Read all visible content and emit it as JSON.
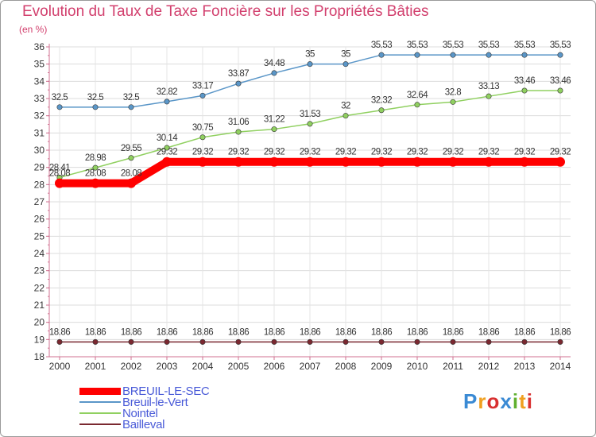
{
  "chart_data": {
    "type": "line",
    "title": "Evolution du Taux de Taxe Foncière sur les Propriétés Bâties",
    "ylabel": "(en %)",
    "xlabel": "",
    "categories": [
      "2000",
      "2001",
      "2002",
      "2003",
      "2004",
      "2005",
      "2006",
      "2007",
      "2008",
      "2009",
      "2010",
      "2011",
      "2012",
      "2013",
      "2014"
    ],
    "ylim": [
      18,
      36
    ],
    "yticks": [
      "18",
      "19",
      "20",
      "21",
      "22",
      "23",
      "24",
      "25",
      "26",
      "27",
      "28",
      "29",
      "30",
      "31",
      "32",
      "33",
      "34",
      "35",
      "36"
    ],
    "series": [
      {
        "name": "BREUIL-LE-SEC",
        "color": "#ff0000",
        "values": [
          28.08,
          28.08,
          28.08,
          29.32,
          29.32,
          29.32,
          29.32,
          29.32,
          29.32,
          29.32,
          29.32,
          29.32,
          29.32,
          29.32,
          29.32
        ],
        "labels": [
          "28.08",
          "28.08",
          "28.08",
          "29.32",
          "29.32",
          "29.32",
          "29.32",
          "29.32",
          "29.32",
          "29.32",
          "29.32",
          "29.32",
          "29.32",
          "29.32",
          "29.32"
        ]
      },
      {
        "name": "Breuil-le-Vert",
        "color": "#5a96c8",
        "values": [
          32.5,
          32.5,
          32.5,
          32.82,
          33.17,
          33.87,
          34.48,
          35,
          35,
          35.53,
          35.53,
          35.53,
          35.53,
          35.53,
          35.53
        ],
        "labels": [
          "32.5",
          "32.5",
          "32.5",
          "32.82",
          "33.17",
          "33.87",
          "34.48",
          "35",
          "35",
          "35.53",
          "35.53",
          "35.53",
          "35.53",
          "35.53",
          "35.53"
        ]
      },
      {
        "name": "Nointel",
        "color": "#90d060",
        "values": [
          28.41,
          28.98,
          29.55,
          30.14,
          30.75,
          31.06,
          31.22,
          31.53,
          32,
          32.32,
          32.64,
          32.8,
          33.13,
          33.46,
          33.46
        ],
        "labels": [
          "28.41",
          "28.98",
          "29.55",
          "30.14",
          "30.75",
          "31.06",
          "31.22",
          "31.53",
          "32",
          "32.32",
          "32.64",
          "32.8",
          "33.13",
          "33.46",
          "33.46"
        ]
      },
      {
        "name": "Bailleval",
        "color": "#7a2830",
        "values": [
          18.86,
          18.86,
          18.86,
          18.86,
          18.86,
          18.86,
          18.86,
          18.86,
          18.86,
          18.86,
          18.86,
          18.86,
          18.86,
          18.86,
          18.86
        ],
        "labels": [
          "18.86",
          "18.86",
          "18.86",
          "18.86",
          "18.86",
          "18.86",
          "18.86",
          "18.86",
          "18.86",
          "18.86",
          "18.86",
          "18.86",
          "18.86",
          "18.86",
          "18.86"
        ]
      }
    ]
  },
  "logo": {
    "letters": [
      "P",
      "r",
      "o",
      "x",
      "i",
      "t",
      "i"
    ],
    "colors": [
      "#3a8ad4",
      "#f0a020",
      "#d83030",
      "#3a8ad4",
      "#60b030",
      "#f0a020",
      "#d83030"
    ]
  }
}
